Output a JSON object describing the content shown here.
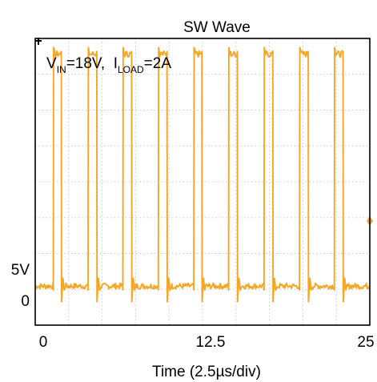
{
  "chart_data": {
    "type": "line",
    "title": "SW Wave",
    "xlabel": "Time (2.5µs/div)",
    "ylabel": "",
    "x_tick_labels": [
      "0",
      "12.5",
      "25"
    ],
    "x_tick_values": [
      0,
      12.5,
      25
    ],
    "xlim": [
      0,
      25
    ],
    "y_tick_labels": [
      "5V",
      "0"
    ],
    "y_tick_values": [
      5,
      0
    ],
    "ylim": [
      -3,
      19
    ],
    "grid": true,
    "grid_divisions_x": 10,
    "grid_divisions_y": 8,
    "annotation": {
      "v_main": "V",
      "v_sub": "IN",
      "v_rest": "=18V,  ",
      "i_main": "I",
      "i_sub": "LOAD",
      "i_rest": "=2A"
    },
    "series": [
      {
        "color": "#f5a623",
        "low_value": 0,
        "high_value": 18,
        "pulses": [
          [
            1.35,
            1.95
          ],
          [
            3.95,
            4.6
          ],
          [
            6.55,
            7.2
          ],
          [
            9.2,
            9.85
          ],
          [
            11.85,
            12.45
          ],
          [
            14.45,
            15.1
          ],
          [
            17.1,
            17.75
          ],
          [
            19.75,
            20.4
          ],
          [
            22.35,
            23.0
          ]
        ]
      }
    ],
    "markers": {
      "trigger_marker_color": "#000000",
      "level_marker_color": "#f5a623"
    }
  }
}
